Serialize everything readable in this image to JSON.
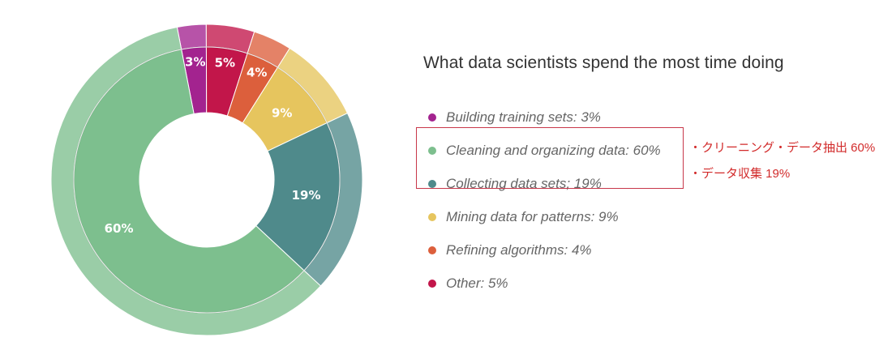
{
  "chart_data": {
    "type": "pie",
    "title": "What data scientists spend the most time doing",
    "slices": [
      {
        "label": "Building training sets",
        "value": 3,
        "display": "3%",
        "legend_text": "Building training sets: 3%",
        "color": "#a3238f"
      },
      {
        "label": "Other",
        "value": 5,
        "display": "5%",
        "legend_text": "Other: 5%",
        "color": "#c2164a"
      },
      {
        "label": "Refining algorithms",
        "value": 4,
        "display": "4%",
        "legend_text": "Refining algorithms: 4%",
        "color": "#dc5f3c"
      },
      {
        "label": "Mining data for patterns",
        "value": 9,
        "display": "9%",
        "legend_text": "Mining data for patterns: 9%",
        "color": "#e6c55e"
      },
      {
        "label": "Collecting data sets",
        "value": 19,
        "display": "19%",
        "legend_text": "Collecting data sets; 19%",
        "color": "#4f8a8b"
      },
      {
        "label": "Cleaning and organizing data",
        "value": 60,
        "display": "60%",
        "legend_text": "Cleaning and organizing data: 60%",
        "color": "#7dbf8e"
      }
    ],
    "legend_order": [
      0,
      5,
      4,
      3,
      2,
      1
    ],
    "legend_placement": "right"
  },
  "annotations": {
    "note_1": "・クリーニング・データ抽出 60%",
    "note_2": "・データ収集 19%",
    "box_color": "#c8384a",
    "text_color": "#d22b2b"
  }
}
